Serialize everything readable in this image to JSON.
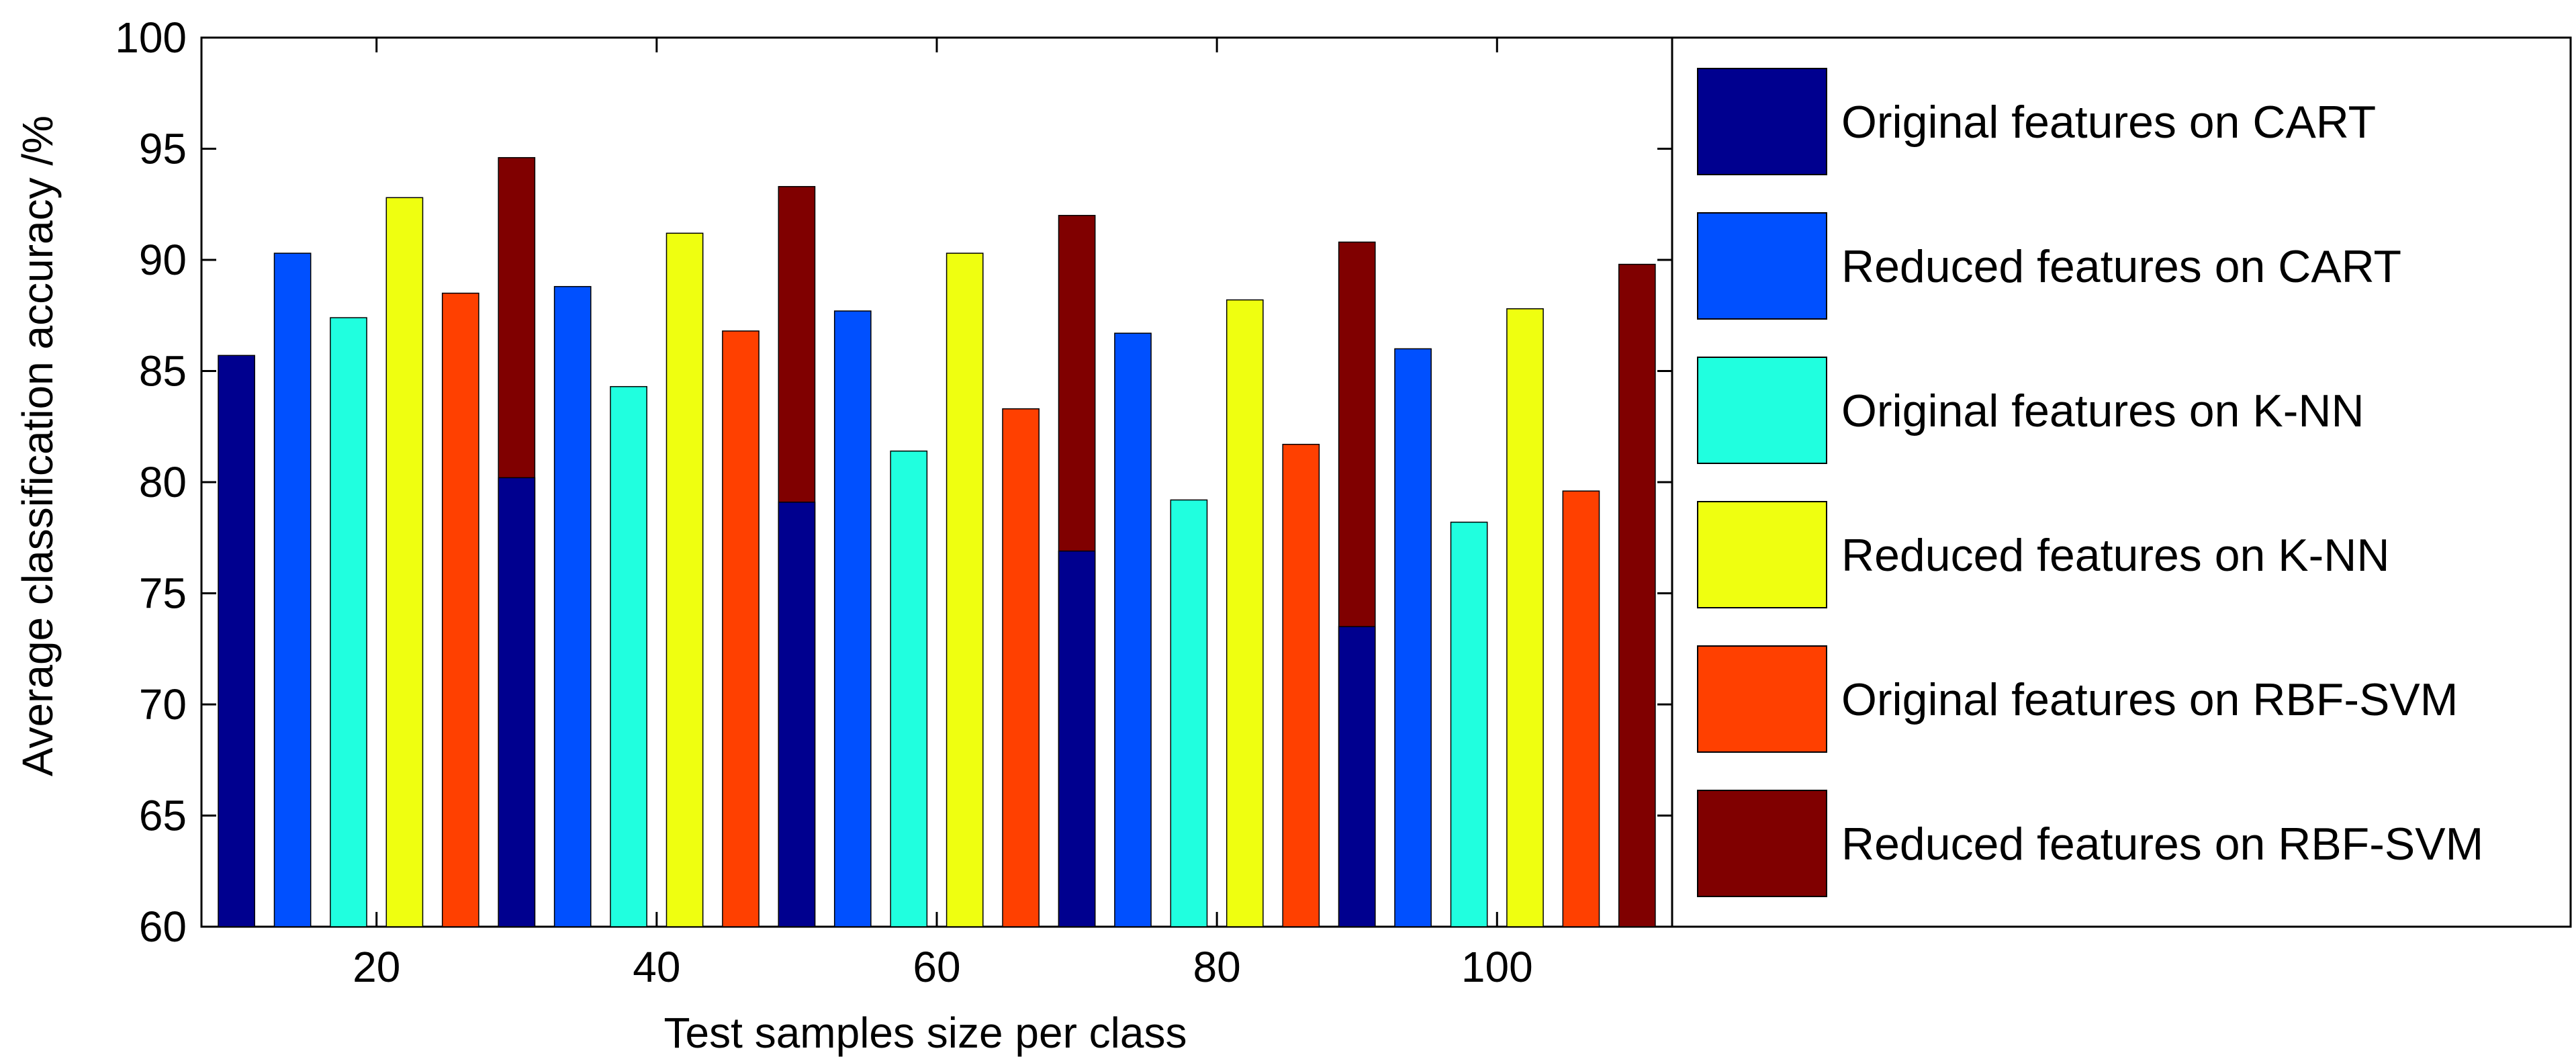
{
  "chart_data": {
    "type": "bar",
    "title": "",
    "xlabel": "Test samples size per class",
    "ylabel": "Average classification accuracy /%",
    "categories": [
      "20",
      "40",
      "60",
      "80",
      "100"
    ],
    "ylim": [
      60,
      100
    ],
    "yticks": [
      60,
      65,
      70,
      75,
      80,
      85,
      90,
      95,
      100
    ],
    "grid": false,
    "legend_position": "right",
    "series": [
      {
        "name": "Original features on CART",
        "color": "#00008f",
        "values": [
          85.7,
          80.2,
          79.1,
          76.9,
          73.5
        ]
      },
      {
        "name": "Reduced features on CART",
        "color": "#0050ff",
        "values": [
          90.3,
          88.8,
          87.7,
          86.7,
          86.0
        ]
      },
      {
        "name": "Original features on K-NN",
        "color": "#20ffdf",
        "values": [
          87.4,
          84.3,
          81.4,
          79.2,
          78.2
        ]
      },
      {
        "name": "Reduced features on K-NN",
        "color": "#efff10",
        "values": [
          92.8,
          91.2,
          90.3,
          88.2,
          87.8
        ]
      },
      {
        "name": "Original features on RBF-SVM",
        "color": "#ff4000",
        "values": [
          88.5,
          86.8,
          83.3,
          81.7,
          79.6
        ]
      },
      {
        "name": "Reduced features on RBF-SVM",
        "color": "#800000",
        "values": [
          94.6,
          93.3,
          92.0,
          90.8,
          89.8
        ]
      }
    ]
  }
}
